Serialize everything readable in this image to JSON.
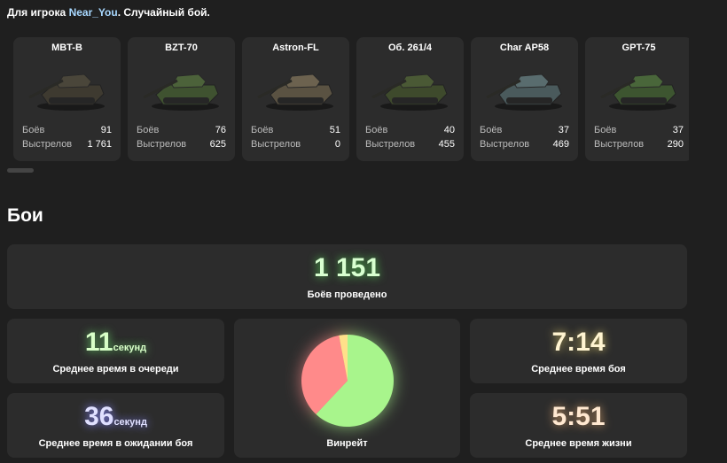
{
  "header": {
    "prefix": "Для игрока",
    "player": "Near_You",
    "suffix": ". Случайный бой."
  },
  "tanks": [
    {
      "name": "MBT-B",
      "battles_label": "Боёв",
      "battles": "91",
      "shots_label": "Выстрелов",
      "shots": "1 761"
    },
    {
      "name": "BZT-70",
      "battles_label": "Боёв",
      "battles": "76",
      "shots_label": "Выстрелов",
      "shots": "625"
    },
    {
      "name": "Astron-FL",
      "battles_label": "Боёв",
      "battles": "51",
      "shots_label": "Выстрелов",
      "shots": "0"
    },
    {
      "name": "Об. 261/4",
      "battles_label": "Боёв",
      "battles": "40",
      "shots_label": "Выстрелов",
      "shots": "455"
    },
    {
      "name": "Char AP58",
      "battles_label": "Боёв",
      "battles": "37",
      "shots_label": "Выстрелов",
      "shots": "469"
    },
    {
      "name": "GPT-75",
      "battles_label": "Боёв",
      "battles": "37",
      "shots_label": "Выстрелов",
      "shots": "290"
    }
  ],
  "section_title": "Бои",
  "stats": {
    "battles": {
      "value": "1 151",
      "label": "Боёв проведено"
    },
    "queue": {
      "value": "11",
      "unit": "секунд",
      "label": "Среднее время в очереди"
    },
    "wait": {
      "value": "36",
      "unit": "секунд",
      "label": "Среднее время в ожидании боя"
    },
    "battle_time": {
      "value": "7:14",
      "label": "Среднее время боя"
    },
    "life_time": {
      "value": "5:51",
      "label": "Среднее время жизни"
    }
  },
  "winrate": {
    "label": "Винрейт",
    "values": [
      62,
      35,
      3
    ],
    "colors": [
      "#a8f58c",
      "#ff8a8a",
      "#ffe08a"
    ]
  }
}
